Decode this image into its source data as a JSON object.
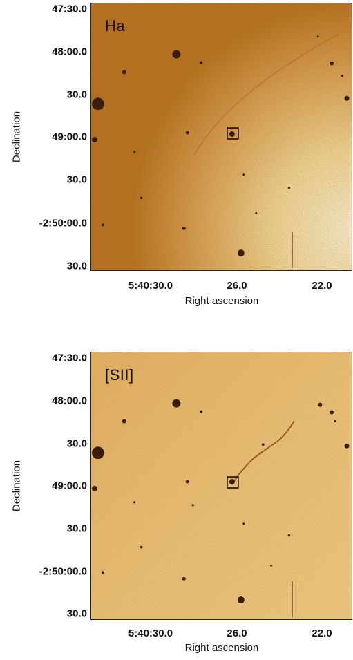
{
  "panels": [
    {
      "filter_label": "Ha",
      "y_ticks": [
        "47:30.0",
        "48:00.0",
        "30.0",
        "49:00.0",
        "30.0",
        "-2:50:00.0",
        "30.0"
      ],
      "x_ticks": [
        "5:40:30.0",
        "26.0",
        "22.0"
      ],
      "y_label": "Declination",
      "x_label": "Right ascension"
    },
    {
      "filter_label": "[SII]",
      "y_ticks": [
        "47:30.0",
        "48:00.0",
        "30.0",
        "49:00.0",
        "30.0",
        "-2:50:00.0",
        "30.0"
      ],
      "x_ticks": [
        "5:40:30.0",
        "26.0",
        "22.0"
      ],
      "y_label": "Declination",
      "x_label": "Right ascension"
    }
  ],
  "colors": {
    "dark_ochre": "#b8701e",
    "mid_ochre": "#d99a44",
    "light_cream": "#f7e4b0",
    "star": "#3a1e08"
  }
}
